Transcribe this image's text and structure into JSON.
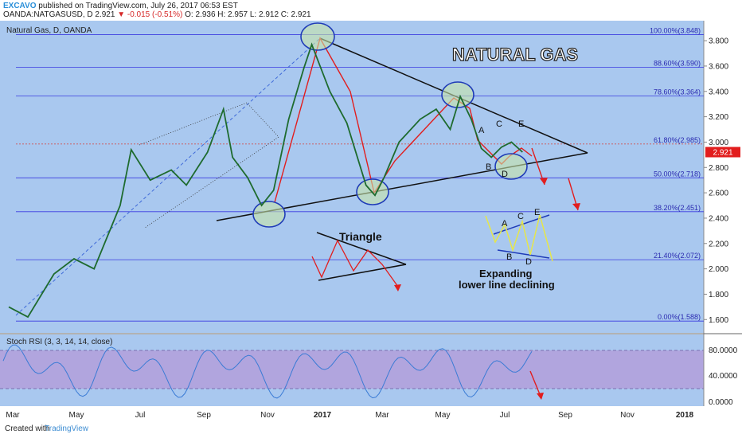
{
  "header": {
    "author": "EXCAVO",
    "published_text": "published on TradingView.com, July 26, 2017 06:53 EST",
    "symbol": "OANDA:NATGASUSD, D",
    "last": "2.921",
    "change": "▼ -0.015 (-0.51%)",
    "ohlc": "O: 2.936  H: 2.957  L: 2.912  C: 2.921"
  },
  "footer": {
    "created_with": "Created with",
    "tradingview": "TradingView"
  },
  "chart_data": [
    {
      "type": "line",
      "title": "Natural Gas, D, OANDA",
      "annotation_title": "NATURAL GAS",
      "x_axis_labels": [
        "Mar",
        "May",
        "Jul",
        "Sep",
        "Nov",
        "2017",
        "Mar",
        "May",
        "Jul",
        "Sep",
        "Nov",
        "2018"
      ],
      "y_ticks": [
        "3.800",
        "3.600",
        "3.400",
        "3.200",
        "3.000",
        "2.800",
        "2.600",
        "2.400",
        "2.200",
        "2.000",
        "1.800",
        "1.600"
      ],
      "ylim": [
        1.52,
        3.92
      ],
      "grid": false,
      "price_label": "2.921",
      "series": [
        {
          "x": [
            "2016-03-01",
            "2016-03-20",
            "2016-04-15",
            "2016-05-05",
            "2016-05-25",
            "2016-06-20",
            "2016-07-01",
            "2016-07-20",
            "2016-08-10",
            "2016-08-25",
            "2016-09-15",
            "2016-10-01",
            "2016-10-10",
            "2016-10-25",
            "2016-11-08",
            "2016-11-20",
            "2016-12-05",
            "2016-12-20",
            "2016-12-28",
            "2017-01-15",
            "2017-02-01",
            "2017-02-20",
            "2017-03-01",
            "2017-03-10",
            "2017-03-25",
            "2017-04-15",
            "2017-05-01",
            "2017-05-15",
            "2017-05-25",
            "2017-06-05",
            "2017-06-15",
            "2017-06-25",
            "2017-07-05",
            "2017-07-15",
            "2017-07-26"
          ],
          "values": [
            1.7,
            1.62,
            1.96,
            2.08,
            2.0,
            2.5,
            2.94,
            2.7,
            2.78,
            2.66,
            2.92,
            3.26,
            2.88,
            2.72,
            2.5,
            2.62,
            3.18,
            3.58,
            3.77,
            3.4,
            3.15,
            2.66,
            2.58,
            2.72,
            3.0,
            3.18,
            3.26,
            3.1,
            3.36,
            3.18,
            2.95,
            2.88,
            2.96,
            3.0,
            2.921
          ]
        }
      ],
      "fib_levels": [
        {
          "pct": "100.00%",
          "value": 3.848,
          "label": "100.00%(3.848)"
        },
        {
          "pct": "88.60%",
          "value": 3.59,
          "label": "88.60%(3.590)"
        },
        {
          "pct": "78.60%",
          "value": 3.364,
          "label": "78.60%(3.364)"
        },
        {
          "pct": "61.80%",
          "value": 2.985,
          "label": "61.80%(2.985)"
        },
        {
          "pct": "50.00%",
          "value": 2.718,
          "label": "50.00%(2.718)"
        },
        {
          "pct": "38.20%",
          "value": 2.451,
          "label": "38.20%(2.451)"
        },
        {
          "pct": "21.40%",
          "value": 2.072,
          "label": "21.40%(2.072)"
        },
        {
          "pct": "0.00%",
          "value": 1.588,
          "label": "0.00%(1.588)"
        }
      ],
      "annotations": {
        "triangle": "Triangle",
        "expanding_line1": "Expanding",
        "expanding_line2": "lower line declining",
        "wave_labels": [
          "A",
          "B",
          "C",
          "D",
          "E"
        ]
      }
    },
    {
      "type": "line",
      "title": "Stoch RSI (3, 3, 14, 14, close)",
      "y_ticks": [
        "80.0000",
        "40.0000",
        "0.0000"
      ],
      "ylim": [
        -5,
        100
      ],
      "band": [
        20,
        80
      ]
    }
  ]
}
